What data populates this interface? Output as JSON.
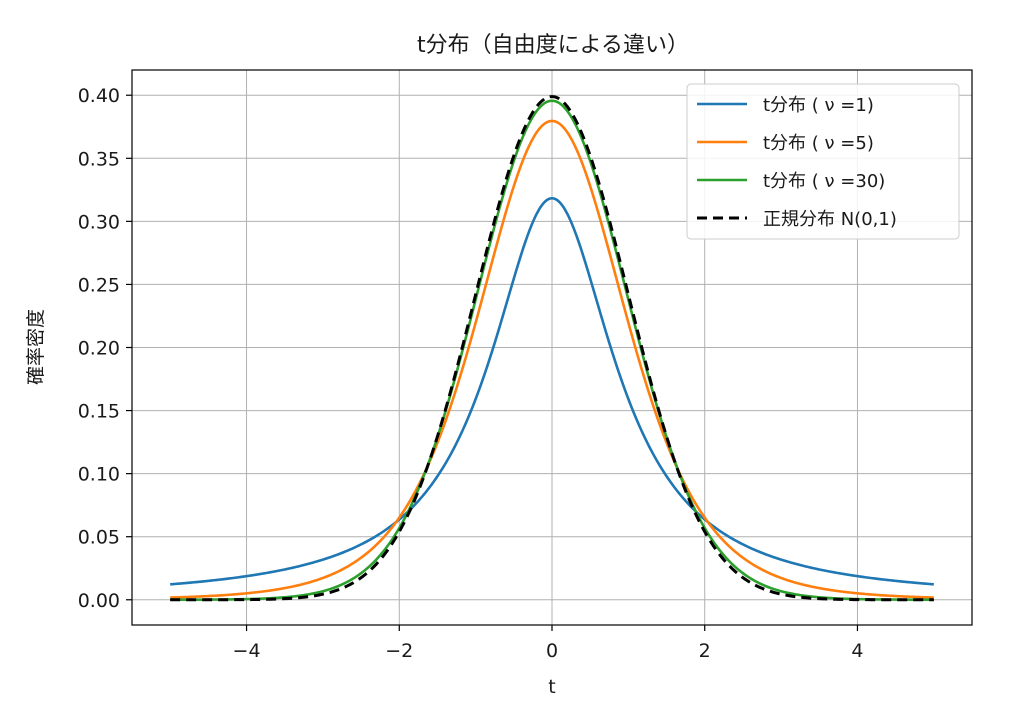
{
  "chart_data": {
    "type": "line",
    "title": "t分布（自由度による違い）",
    "xlabel": "t",
    "ylabel": "確率密度",
    "xlim": [
      -5.5,
      5.5
    ],
    "ylim": [
      -0.02,
      0.42
    ],
    "xticks": [
      -4,
      -2,
      0,
      2,
      4
    ],
    "xtick_labels": [
      "−4",
      "−2",
      "0",
      "2",
      "4"
    ],
    "yticks": [
      0.0,
      0.05,
      0.1,
      0.15,
      0.2,
      0.25,
      0.3,
      0.35,
      0.4
    ],
    "ytick_labels": [
      "0.00",
      "0.05",
      "0.10",
      "0.15",
      "0.20",
      "0.25",
      "0.30",
      "0.35",
      "0.40"
    ],
    "grid": true,
    "legend_position": "top-right",
    "x_range": [
      -5,
      5
    ],
    "series": [
      {
        "name": "t分布 (ν=1)",
        "label": "t分布 ( ν =1)",
        "df": 1,
        "color": "#1f77b4",
        "style": "solid",
        "x": [
          -5,
          -4,
          -3,
          -2,
          -1.5,
          -1,
          -0.5,
          0,
          0.5,
          1,
          1.5,
          2,
          3,
          4,
          5
        ],
        "y": [
          0.0122,
          0.0187,
          0.0318,
          0.0637,
          0.0979,
          0.1592,
          0.2546,
          0.3183,
          0.2546,
          0.1592,
          0.0979,
          0.0637,
          0.0318,
          0.0187,
          0.0122
        ]
      },
      {
        "name": "t分布 (ν=5)",
        "label": "t分布 ( ν =5)",
        "df": 5,
        "color": "#ff7f0e",
        "style": "solid",
        "x": [
          -5,
          -4,
          -3,
          -2,
          -1.5,
          -1,
          -0.5,
          0,
          0.5,
          1,
          1.5,
          2,
          3,
          4,
          5
        ],
        "y": [
          0.0018,
          0.0051,
          0.0173,
          0.0651,
          0.1245,
          0.2197,
          0.3279,
          0.3796,
          0.3279,
          0.2197,
          0.1245,
          0.0651,
          0.0173,
          0.0051,
          0.0018
        ]
      },
      {
        "name": "t分布 (ν=30)",
        "label": "t分布 ( ν =30)",
        "df": 30,
        "color": "#2ca02c",
        "style": "solid",
        "x": [
          -5,
          -4,
          -3,
          -2,
          -1.5,
          -1,
          -0.5,
          0,
          0.5,
          1,
          1.5,
          2,
          3,
          4,
          5
        ],
        "y": [
          0.0001,
          0.0006,
          0.006,
          0.0573,
          0.1297,
          0.2387,
          0.3469,
          0.3956,
          0.3469,
          0.2387,
          0.1297,
          0.0573,
          0.006,
          0.0006,
          0.0001
        ]
      },
      {
        "name": "正規分布 N(0,1)",
        "label": "正規分布 N(0,1)",
        "df": null,
        "color": "#000000",
        "style": "dashed",
        "x": [
          -5,
          -4,
          -3,
          -2,
          -1.5,
          -1,
          -0.5,
          0,
          0.5,
          1,
          1.5,
          2,
          3,
          4,
          5
        ],
        "y": [
          0.0,
          0.0001,
          0.0044,
          0.054,
          0.1295,
          0.242,
          0.3521,
          0.3989,
          0.3521,
          0.242,
          0.1295,
          0.054,
          0.0044,
          0.0001,
          0.0
        ]
      }
    ]
  }
}
